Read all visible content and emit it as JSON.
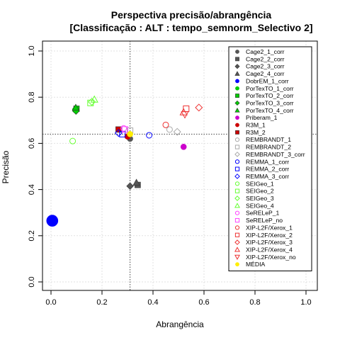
{
  "chart_data": {
    "type": "scatter",
    "title_line1": "Perspectiva precisão/abrangência",
    "title_line2": "[Classificação : ALT : tempo_semnorm_Selectivo 2]",
    "xlabel": "Abrangência",
    "ylabel": "Precisão",
    "xlim": [
      0,
      1
    ],
    "ylim": [
      0,
      1
    ],
    "xticks": [
      "0.0",
      "0.2",
      "0.4",
      "0.6",
      "0.8",
      "1.0"
    ],
    "yticks": [
      "0.0",
      "0.2",
      "0.4",
      "0.6",
      "0.8",
      "1.0"
    ],
    "grid": true,
    "legend_position": "right",
    "reference_lines": {
      "x": 0.31,
      "y": 0.64
    },
    "series": [
      {
        "name": "Cage2_1_corr",
        "color": "#555555",
        "shape": "circle",
        "filled": true,
        "points": [
          [
            0.31,
            0.62
          ]
        ]
      },
      {
        "name": "Cage2_2_corr",
        "color": "#555555",
        "shape": "square",
        "filled": true,
        "points": [
          [
            0.34,
            0.42
          ]
        ]
      },
      {
        "name": "Cage2_3_corr",
        "color": "#555555",
        "shape": "diamond",
        "filled": true,
        "points": [
          [
            0.31,
            0.415
          ]
        ]
      },
      {
        "name": "Cage2_4_corr",
        "color": "#555555",
        "shape": "triangle",
        "filled": true,
        "points": [
          [
            0.335,
            0.43
          ]
        ]
      },
      {
        "name": "DobrEM_1_corr",
        "color": "#0000ff",
        "shape": "circle",
        "filled": true,
        "big": true,
        "points": [
          [
            0.005,
            0.265
          ]
        ]
      },
      {
        "name": "PorTexTO_1_corr",
        "color": "#00cc00",
        "shape": "circle",
        "filled": true,
        "points": [
          [
            0.095,
            0.745
          ]
        ]
      },
      {
        "name": "PorTexTO_2_corr",
        "color": "#00cc00",
        "shape": "square",
        "filled": true,
        "points": [
          [
            0.1,
            0.75
          ]
        ]
      },
      {
        "name": "PorTexTO_3_corr",
        "color": "#00cc00",
        "shape": "diamond",
        "filled": true,
        "points": [
          [
            0.098,
            0.74
          ]
        ]
      },
      {
        "name": "PorTexTO_4_corr",
        "color": "#00cc00",
        "shape": "triangle",
        "filled": true,
        "points": [
          [
            0.097,
            0.755
          ]
        ]
      },
      {
        "name": "Priberam_1",
        "color": "#cc00cc",
        "shape": "circle",
        "filled": true,
        "points": [
          [
            0.52,
            0.585
          ]
        ]
      },
      {
        "name": "R3M_1",
        "color": "#cc0000",
        "shape": "circle",
        "filled": true,
        "points": [
          [
            0.3,
            0.63
          ]
        ]
      },
      {
        "name": "R3M_2",
        "color": "#cc0000",
        "shape": "square",
        "filled": true,
        "points": [
          [
            0.265,
            0.66
          ]
        ]
      },
      {
        "name": "REMBRANDT_1",
        "color": "#aaaaaa",
        "shape": "circle",
        "filled": false,
        "points": [
          [
            0.465,
            0.66
          ]
        ]
      },
      {
        "name": "REMBRANDT_2",
        "color": "#aaaaaa",
        "shape": "square",
        "filled": false,
        "points": [
          [
            0.31,
            0.655
          ]
        ]
      },
      {
        "name": "REMBRANDT_3_corr",
        "color": "#aaaaaa",
        "shape": "diamond",
        "filled": false,
        "points": [
          [
            0.495,
            0.65
          ]
        ]
      },
      {
        "name": "REMMA_1_corr",
        "color": "#0000ff",
        "shape": "circle",
        "filled": false,
        "points": [
          [
            0.385,
            0.635
          ]
        ]
      },
      {
        "name": "REMMA_2_corr",
        "color": "#0000ff",
        "shape": "square",
        "filled": false,
        "points": [
          [
            0.28,
            0.64
          ]
        ]
      },
      {
        "name": "REMMA_3_corr",
        "color": "#0000ff",
        "shape": "diamond",
        "filled": false,
        "points": [
          [
            0.265,
            0.645
          ]
        ]
      },
      {
        "name": "SEIGeo_1",
        "color": "#66ff33",
        "shape": "circle",
        "filled": false,
        "points": [
          [
            0.085,
            0.61
          ]
        ]
      },
      {
        "name": "SEIGeo_2",
        "color": "#66ff33",
        "shape": "square",
        "filled": false,
        "points": [
          [
            0.155,
            0.775
          ]
        ]
      },
      {
        "name": "SEIGeo_3",
        "color": "#66ff33",
        "shape": "diamond",
        "filled": false,
        "points": [
          [
            0.16,
            0.78
          ]
        ]
      },
      {
        "name": "SEIGeo_4",
        "color": "#66ff33",
        "shape": "triangle",
        "filled": false,
        "points": [
          [
            0.17,
            0.79
          ]
        ]
      },
      {
        "name": "SeRELeP_1",
        "color": "#ff44ff",
        "shape": "circle",
        "filled": false,
        "points": [
          [
            0.285,
            0.665
          ]
        ]
      },
      {
        "name": "SeRELeP_no",
        "color": "#ff44ff",
        "shape": "square",
        "filled": false,
        "points": [
          [
            0.29,
            0.66
          ]
        ]
      },
      {
        "name": "XIP-L2F/Xerox_1",
        "color": "#ee3333",
        "shape": "circle",
        "filled": false,
        "points": [
          [
            0.45,
            0.68
          ]
        ]
      },
      {
        "name": "XIP-L2F/Xerox_2",
        "color": "#ee3333",
        "shape": "square",
        "filled": false,
        "points": [
          [
            0.53,
            0.75
          ]
        ]
      },
      {
        "name": "XIP-L2F/Xerox_3",
        "color": "#ee3333",
        "shape": "diamond",
        "filled": false,
        "points": [
          [
            0.58,
            0.755
          ]
        ]
      },
      {
        "name": "XIP-L2F/Xerox_4",
        "color": "#ee3333",
        "shape": "triangle",
        "filled": false,
        "points": [
          [
            0.52,
            0.735
          ]
        ]
      },
      {
        "name": "XIP-L2F/Xerox_no",
        "color": "#ee3333",
        "shape": "triangle-down",
        "filled": false,
        "points": [
          [
            0.525,
            0.725
          ]
        ]
      },
      {
        "name": "MÉDIA",
        "color": "#ffee00",
        "shape": "circle",
        "filled": true,
        "points": [
          [
            0.31,
            0.64
          ]
        ]
      }
    ]
  }
}
